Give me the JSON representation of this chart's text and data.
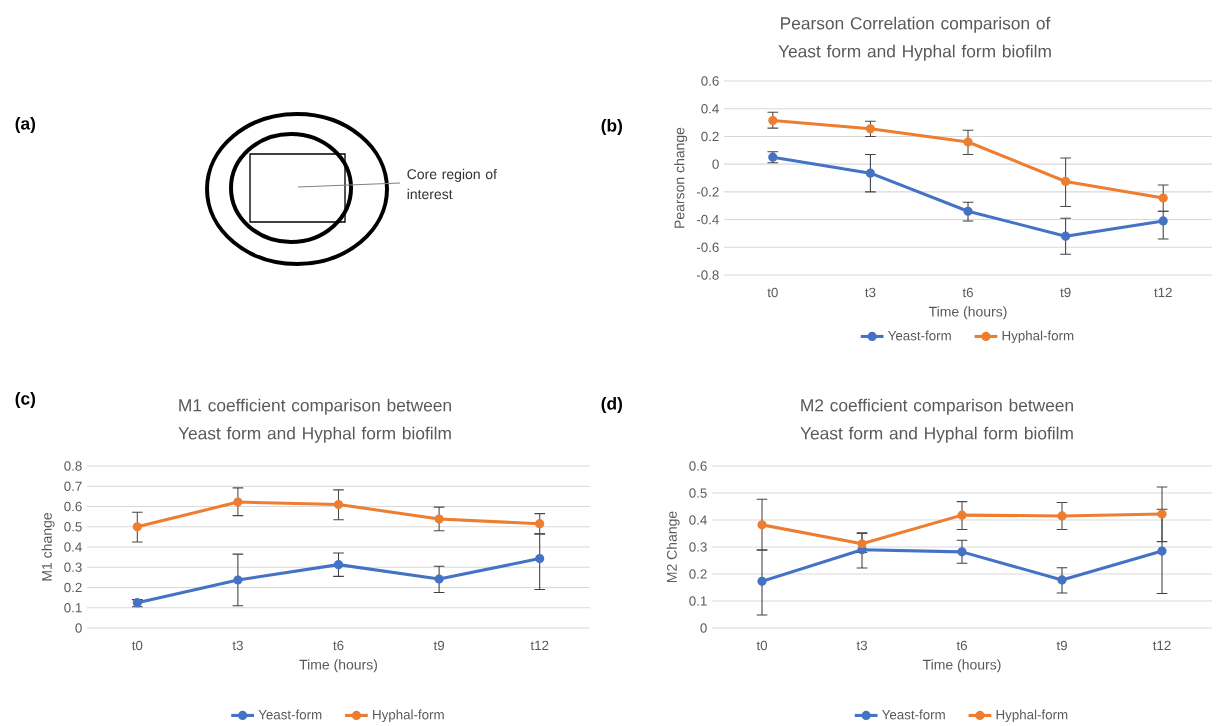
{
  "chart_data": [
    {
      "type": "other",
      "annotations": [
        "(a)",
        "Core region of interest"
      ]
    },
    {
      "type": "line",
      "title": "Pearson Correlation comparison of Yeast form and Hyphal form biofilm",
      "annotations": [
        "(b)"
      ],
      "xlabel": "Time (hours)",
      "ylabel": "Pearson change",
      "categories": [
        "t0",
        "t3",
        "t6",
        "t9",
        "t12"
      ],
      "ylim": [
        -0.8,
        0.6
      ],
      "yticks": [
        -0.8,
        -0.6,
        -0.4,
        -0.2,
        0,
        0.2,
        0.4,
        0.6
      ],
      "grid": "y",
      "legend": "bottom",
      "marker": "circle",
      "series": [
        {
          "name": "Yeast-form",
          "color": "#4472c4",
          "values": [
            0.05,
            -0.065,
            -0.34,
            -0.52,
            -0.41
          ],
          "errors": [
            [
              0.01,
              0.09
            ],
            [
              -0.2,
              0.07
            ],
            [
              -0.41,
              -0.275
            ],
            [
              -0.65,
              -0.39
            ],
            [
              -0.54,
              -0.34
            ]
          ]
        },
        {
          "name": "Hyphal-form",
          "color": "#ed7d31",
          "values": [
            0.315,
            0.255,
            0.16,
            -0.125,
            -0.245
          ],
          "errors": [
            [
              0.26,
              0.375
            ],
            [
              0.2,
              0.31
            ],
            [
              0.07,
              0.245
            ],
            [
              -0.305,
              0.045
            ],
            [
              -0.34,
              -0.15
            ]
          ]
        }
      ]
    },
    {
      "type": "line",
      "title": "M1 coefficient comparison between Yeast form and Hyphal form biofilm",
      "annotations": [
        "(c)"
      ],
      "xlabel": "Time (hours)",
      "ylabel": "M1 change",
      "categories": [
        "t0",
        "t3",
        "t6",
        "t9",
        "t12"
      ],
      "ylim": [
        0,
        0.8
      ],
      "yticks": [
        0,
        0.1,
        0.2,
        0.3,
        0.4,
        0.5,
        0.6,
        0.7,
        0.8
      ],
      "grid": "y",
      "legend": "bottom",
      "marker": "circle",
      "series": [
        {
          "name": "Yeast-form",
          "color": "#4472c4",
          "values": [
            0.125,
            0.237,
            0.313,
            0.242,
            0.343
          ],
          "errors": [
            [
              0.105,
              0.14
            ],
            [
              0.11,
              0.365
            ],
            [
              0.255,
              0.37
            ],
            [
              0.175,
              0.305
            ],
            [
              0.19,
              0.465
            ]
          ]
        },
        {
          "name": "Hyphal-form",
          "color": "#ed7d31",
          "values": [
            0.5,
            0.622,
            0.61,
            0.538,
            0.515
          ],
          "errors": [
            [
              0.425,
              0.572
            ],
            [
              0.555,
              0.692
            ],
            [
              0.535,
              0.682
            ],
            [
              0.48,
              0.597
            ],
            [
              0.465,
              0.565
            ]
          ]
        }
      ]
    },
    {
      "type": "line",
      "title": "M2 coefficient comparison between Yeast form and Hyphal form biofilm",
      "annotations": [
        "(d)"
      ],
      "xlabel": "Time (hours)",
      "ylabel": "M2 Change",
      "categories": [
        "t0",
        "t3",
        "t6",
        "t9",
        "t12"
      ],
      "ylim": [
        0,
        0.6
      ],
      "yticks": [
        0,
        0.1,
        0.2,
        0.3,
        0.4,
        0.5,
        0.6
      ],
      "grid": "y",
      "legend": "bottom",
      "marker": "circle",
      "series": [
        {
          "name": "Yeast-form",
          "color": "#4472c4",
          "values": [
            0.173,
            0.29,
            0.282,
            0.178,
            0.285
          ],
          "errors": [
            [
              0.048,
              0.29
            ],
            [
              0.222,
              0.353
            ],
            [
              0.24,
              0.325
            ],
            [
              0.13,
              0.223
            ],
            [
              0.128,
              0.44
            ]
          ]
        },
        {
          "name": "Hyphal-form",
          "color": "#ed7d31",
          "values": [
            0.382,
            0.312,
            0.418,
            0.415,
            0.422
          ],
          "errors": [
            [
              0.288,
              0.477
            ],
            [
              0.28,
              0.35
            ],
            [
              0.365,
              0.468
            ],
            [
              0.365,
              0.465
            ],
            [
              0.32,
              0.522
            ]
          ]
        }
      ]
    }
  ]
}
